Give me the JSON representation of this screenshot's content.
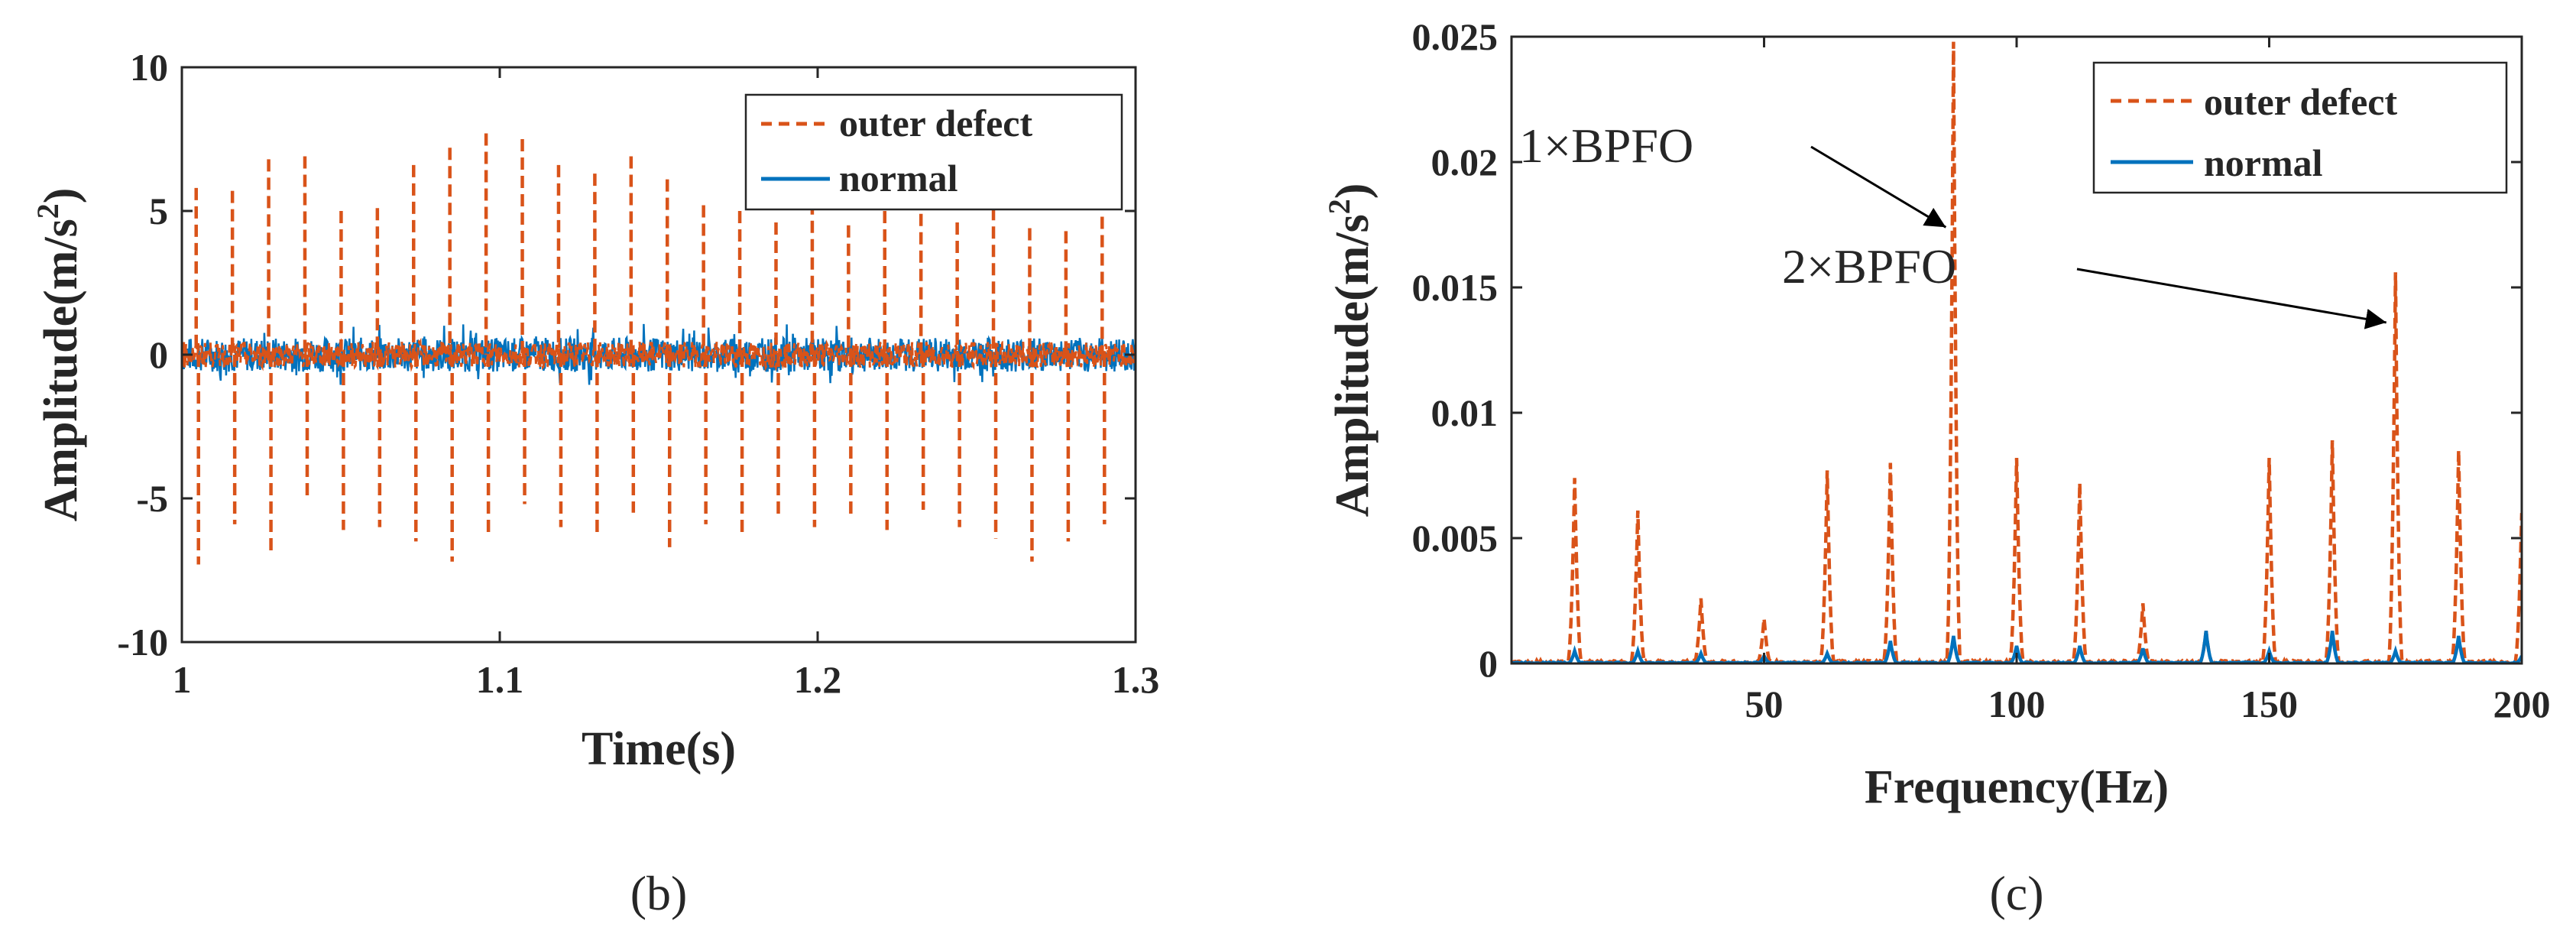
{
  "colors": {
    "defect": "#D95319",
    "normal": "#0072BD",
    "axis": "#262626",
    "background": "#ffffff"
  },
  "chart_data": [
    {
      "id": "b",
      "type": "line",
      "panel_label": "(b)",
      "title": "",
      "xlabel": "Time(s)",
      "ylabel_main": "Amplitude(m/s",
      "ylabel_sup": "2",
      "ylabel_close": ")",
      "xlim": [
        1,
        1.3
      ],
      "ylim": [
        -10,
        10
      ],
      "xticks": [
        1,
        1.1,
        1.2,
        1.3
      ],
      "xtick_labels": [
        "1",
        "1.1",
        "1.2",
        "1.3"
      ],
      "yticks": [
        10,
        5,
        0,
        -5,
        -10
      ],
      "ytick_labels": [
        "10",
        "5",
        "0",
        "-5",
        "-10"
      ],
      "grid": false,
      "legend_position": "top-right",
      "series": [
        {
          "name": "outer defect",
          "style": "dashed",
          "color": "#D95319",
          "impulses": [
            {
              "t": 1.0045,
              "pos": 5.8,
              "neg": -7.3
            },
            {
              "t": 1.0159,
              "pos": 5.7,
              "neg": -5.9
            },
            {
              "t": 1.0273,
              "pos": 6.8,
              "neg": -6.9
            },
            {
              "t": 1.0387,
              "pos": 6.9,
              "neg": -4.9
            },
            {
              "t": 1.0501,
              "pos": 5.0,
              "neg": -6.1
            },
            {
              "t": 1.0615,
              "pos": 5.1,
              "neg": -6.0
            },
            {
              "t": 1.0729,
              "pos": 6.6,
              "neg": -6.5
            },
            {
              "t": 1.0843,
              "pos": 7.2,
              "neg": -7.2
            },
            {
              "t": 1.0957,
              "pos": 7.7,
              "neg": -6.3
            },
            {
              "t": 1.1071,
              "pos": 7.5,
              "neg": -5.2
            },
            {
              "t": 1.1185,
              "pos": 6.6,
              "neg": -6.0
            },
            {
              "t": 1.1299,
              "pos": 6.3,
              "neg": -6.3
            },
            {
              "t": 1.1413,
              "pos": 6.9,
              "neg": -5.5
            },
            {
              "t": 1.1527,
              "pos": 6.1,
              "neg": -6.7
            },
            {
              "t": 1.1641,
              "pos": 5.2,
              "neg": -5.9
            },
            {
              "t": 1.1755,
              "pos": 5.0,
              "neg": -6.2
            },
            {
              "t": 1.1869,
              "pos": 4.6,
              "neg": -5.6
            },
            {
              "t": 1.1983,
              "pos": 5.3,
              "neg": -6.0
            },
            {
              "t": 1.2097,
              "pos": 4.5,
              "neg": -5.7
            },
            {
              "t": 1.2211,
              "pos": 5.0,
              "neg": -6.1
            },
            {
              "t": 1.2325,
              "pos": 4.9,
              "neg": -5.4
            },
            {
              "t": 1.2439,
              "pos": 4.6,
              "neg": -6.0
            },
            {
              "t": 1.2553,
              "pos": 5.1,
              "neg": -6.4
            },
            {
              "t": 1.2667,
              "pos": 4.4,
              "neg": -7.2
            },
            {
              "t": 1.2781,
              "pos": 4.3,
              "neg": -6.5
            },
            {
              "t": 1.2895,
              "pos": 4.8,
              "neg": -5.9
            }
          ],
          "noise_amplitude": 0.45
        },
        {
          "name": "normal",
          "style": "solid",
          "color": "#0072BD",
          "noise_amplitude": 0.6
        }
      ]
    },
    {
      "id": "c",
      "type": "line",
      "panel_label": "(c)",
      "title": "",
      "xlabel": "Frequency(Hz)",
      "ylabel_main": "Amplitude(m/s",
      "ylabel_sup": "2",
      "ylabel_close": ")",
      "xlim": [
        0,
        200
      ],
      "ylim": [
        0,
        0.025
      ],
      "xticks": [
        50,
        100,
        150,
        200
      ],
      "xtick_labels": [
        "50",
        "100",
        "150",
        "200"
      ],
      "yticks": [
        0.025,
        0.02,
        0.015,
        0.01,
        0.005,
        0
      ],
      "ytick_labels": [
        "0.025",
        "0.02",
        "0.015",
        "0.01",
        "0.005",
        "0"
      ],
      "grid": false,
      "legend_position": "top-right",
      "series": [
        {
          "name": "outer defect",
          "style": "dashed",
          "color": "#D95319",
          "peaks": [
            {
              "f": 12.5,
              "a": 0.0074
            },
            {
              "f": 25.0,
              "a": 0.0061
            },
            {
              "f": 37.5,
              "a": 0.0026
            },
            {
              "f": 50.0,
              "a": 0.0018
            },
            {
              "f": 62.5,
              "a": 0.0077
            },
            {
              "f": 75.0,
              "a": 0.008
            },
            {
              "f": 87.5,
              "a": 0.0248
            },
            {
              "f": 100.0,
              "a": 0.0082
            },
            {
              "f": 112.5,
              "a": 0.0072
            },
            {
              "f": 125.0,
              "a": 0.0024
            },
            {
              "f": 137.5,
              "a": 0.0013
            },
            {
              "f": 150.0,
              "a": 0.0082
            },
            {
              "f": 162.5,
              "a": 0.0089
            },
            {
              "f": 175.0,
              "a": 0.0156
            },
            {
              "f": 187.5,
              "a": 0.0085
            },
            {
              "f": 200.0,
              "a": 0.006
            }
          ]
        },
        {
          "name": "normal",
          "style": "solid",
          "color": "#0072BD",
          "peaks": [
            {
              "f": 12.5,
              "a": 0.0005
            },
            {
              "f": 25.0,
              "a": 0.0005
            },
            {
              "f": 37.5,
              "a": 0.0004
            },
            {
              "f": 50.0,
              "a": 0.0003
            },
            {
              "f": 62.5,
              "a": 0.0004
            },
            {
              "f": 75.0,
              "a": 0.0009
            },
            {
              "f": 87.5,
              "a": 0.0011
            },
            {
              "f": 100.0,
              "a": 0.0007
            },
            {
              "f": 112.5,
              "a": 0.0007
            },
            {
              "f": 125.0,
              "a": 0.0006
            },
            {
              "f": 137.5,
              "a": 0.0013
            },
            {
              "f": 150.0,
              "a": 0.0005
            },
            {
              "f": 162.5,
              "a": 0.0013
            },
            {
              "f": 175.0,
              "a": 0.0005
            },
            {
              "f": 187.5,
              "a": 0.0011
            },
            {
              "f": 200.0,
              "a": 0.0003
            }
          ]
        }
      ],
      "annotations": [
        {
          "text": "1×BPFO",
          "target_f": 87.5,
          "target_a": 0.0174
        },
        {
          "text": "2×BPFO",
          "target_f": 175.0,
          "target_a": 0.0136
        }
      ]
    }
  ]
}
